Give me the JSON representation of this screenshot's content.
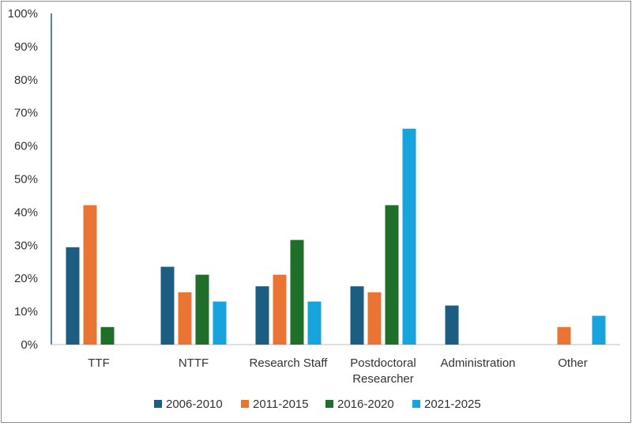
{
  "chart_data": {
    "type": "bar",
    "title": "",
    "xlabel": "",
    "ylabel": "",
    "ylim": [
      0,
      100
    ],
    "y_ticks": [
      "0%",
      "10%",
      "20%",
      "30%",
      "40%",
      "50%",
      "60%",
      "70%",
      "80%",
      "90%",
      "100%"
    ],
    "grid": false,
    "legend_position": "bottom",
    "categories": [
      [
        "TTF"
      ],
      [
        "NTTF"
      ],
      [
        "Research Staff"
      ],
      [
        "Postdoctoral",
        "Researcher"
      ],
      [
        "Administration"
      ],
      [
        "Other"
      ]
    ],
    "series": [
      {
        "name": "2006-2010",
        "color": "#1b5e82",
        "values": [
          29.4,
          23.5,
          17.6,
          17.6,
          11.8,
          0
        ]
      },
      {
        "name": "2011-2015",
        "color": "#ea7434",
        "values": [
          42.1,
          15.8,
          21.1,
          15.8,
          0,
          5.3
        ]
      },
      {
        "name": "2016-2020",
        "color": "#1f6e2a",
        "values": [
          5.3,
          21.1,
          31.6,
          42.1,
          0,
          0
        ]
      },
      {
        "name": "2021-2025",
        "color": "#17a3dc",
        "values": [
          0,
          13.0,
          13.0,
          65.2,
          0,
          8.7
        ]
      }
    ]
  }
}
